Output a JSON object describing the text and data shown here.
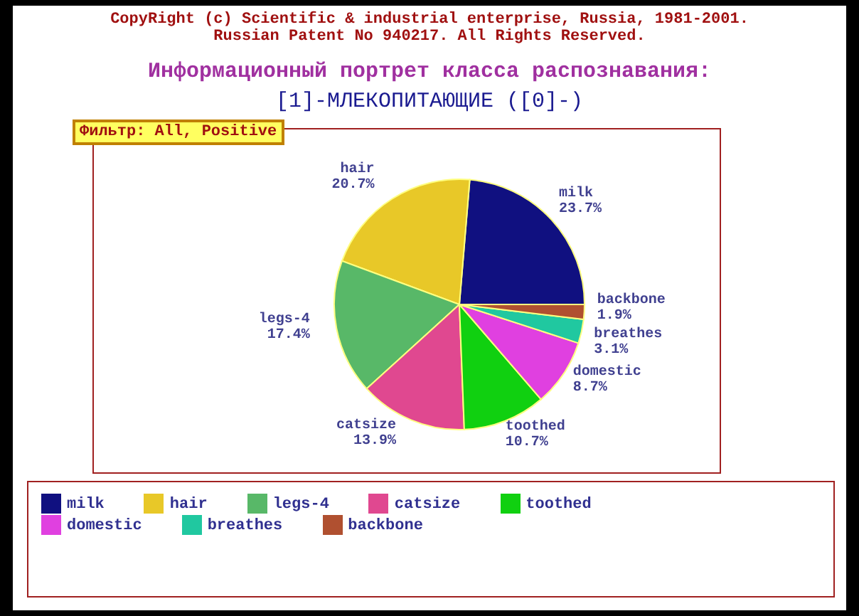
{
  "chart_data": {
    "type": "pie",
    "title": "Информационный портрет класса распознавания:",
    "subtitle": "[1]-МЛЕКОПИТАЮЩИЕ ([0]-)",
    "annotations": [
      "CopyRight (c) Scientific & industrial enterprise, Russia, 1981-2001.",
      "Russian Patent No 940217. All Rights Reserved.",
      "Фильтр: All, Positive"
    ],
    "categories": [
      "milk",
      "hair",
      "legs-4",
      "catsize",
      "toothed",
      "domestic",
      "breathes",
      "backbone"
    ],
    "values": [
      23.7,
      20.7,
      17.4,
      13.9,
      10.7,
      8.7,
      3.1,
      1.9
    ],
    "value_labels": [
      "23.7%",
      "20.7%",
      "17.4%",
      "13.9%",
      "10.7%",
      "8.7%",
      "3.1%",
      "1.9%"
    ],
    "colors": [
      "#101080",
      "#e8c828",
      "#58b868",
      "#e04890",
      "#10d010",
      "#e040e0",
      "#20c8a0",
      "#b05030"
    ],
    "legend": "bottom"
  }
}
